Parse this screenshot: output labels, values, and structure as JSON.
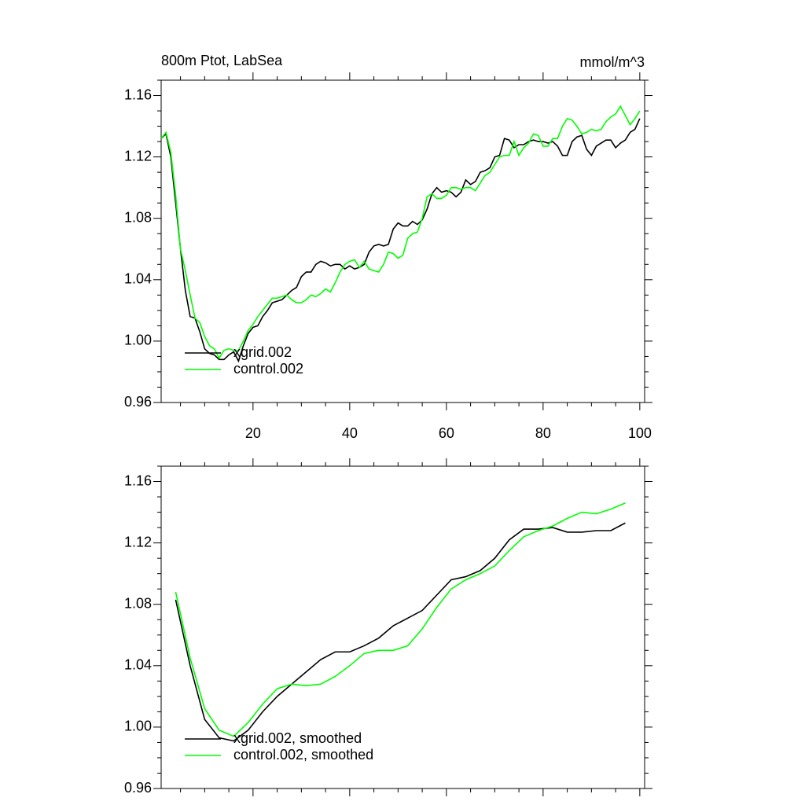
{
  "chart_data": [
    {
      "type": "line",
      "title": "800m Ptot, LabSea",
      "unit_label": "mmol/m^3",
      "x": [
        1,
        2,
        3,
        4,
        5,
        6,
        7,
        8,
        9,
        10,
        11,
        12,
        13,
        14,
        15,
        16,
        17,
        18,
        19,
        20,
        21,
        22,
        23,
        24,
        25,
        26,
        27,
        28,
        29,
        30,
        31,
        32,
        33,
        34,
        35,
        36,
        37,
        38,
        39,
        40,
        41,
        42,
        43,
        44,
        45,
        46,
        47,
        48,
        49,
        50,
        51,
        52,
        53,
        54,
        55,
        56,
        57,
        58,
        59,
        60,
        61,
        62,
        63,
        64,
        65,
        66,
        67,
        68,
        69,
        70,
        71,
        72,
        73,
        74,
        75,
        76,
        77,
        78,
        79,
        80,
        81,
        82,
        83,
        84,
        85,
        86,
        87,
        88,
        89,
        90,
        91,
        92,
        93,
        94,
        95,
        96,
        97,
        98,
        99,
        100
      ],
      "series": [
        {
          "name": "xgrid.002",
          "color": "#000000",
          "values": [
            1.132,
            1.135,
            1.12,
            1.09,
            1.06,
            1.033,
            1.016,
            1.015,
            1.006,
            0.995,
            0.992,
            0.991,
            0.988,
            0.988,
            0.991,
            0.993,
            0.987,
            0.997,
            1.005,
            1.009,
            1.01,
            1.016,
            1.02,
            1.025,
            1.026,
            1.027,
            1.03,
            1.033,
            1.035,
            1.042,
            1.045,
            1.045,
            1.05,
            1.052,
            1.051,
            1.049,
            1.05,
            1.05,
            1.047,
            1.049,
            1.047,
            1.048,
            1.05,
            1.058,
            1.062,
            1.063,
            1.062,
            1.063,
            1.073,
            1.077,
            1.075,
            1.075,
            1.078,
            1.076,
            1.079,
            1.086,
            1.096,
            1.1,
            1.097,
            1.098,
            1.097,
            1.094,
            1.097,
            1.105,
            1.102,
            1.104,
            1.11,
            1.111,
            1.113,
            1.12,
            1.121,
            1.132,
            1.131,
            1.126,
            1.128,
            1.128,
            1.13,
            1.131,
            1.13,
            1.13,
            1.129,
            1.13,
            1.127,
            1.121,
            1.121,
            1.13,
            1.133,
            1.134,
            1.125,
            1.121,
            1.127,
            1.129,
            1.131,
            1.131,
            1.126,
            1.129,
            1.131,
            1.136,
            1.138,
            1.145
          ]
        },
        {
          "name": "control.002",
          "color": "#00ff00",
          "values": [
            1.132,
            1.136,
            1.123,
            1.095,
            1.06,
            1.046,
            1.03,
            1.015,
            1.012,
            1.003,
            0.997,
            0.995,
            0.989,
            0.994,
            0.995,
            0.994,
            0.994,
            1.0,
            1.007,
            1.011,
            1.016,
            1.02,
            1.024,
            1.028,
            1.028,
            1.029,
            1.03,
            1.027,
            1.025,
            1.025,
            1.027,
            1.03,
            1.029,
            1.031,
            1.034,
            1.032,
            1.038,
            1.045,
            1.05,
            1.052,
            1.053,
            1.048,
            1.052,
            1.047,
            1.046,
            1.045,
            1.05,
            1.058,
            1.057,
            1.054,
            1.056,
            1.067,
            1.07,
            1.071,
            1.08,
            1.094,
            1.096,
            1.093,
            1.093,
            1.095,
            1.1,
            1.1,
            1.099,
            1.1,
            1.1,
            1.098,
            1.103,
            1.108,
            1.11,
            1.115,
            1.12,
            1.121,
            1.121,
            1.13,
            1.121,
            1.126,
            1.129,
            1.135,
            1.134,
            1.127,
            1.127,
            1.132,
            1.132,
            1.14,
            1.145,
            1.144,
            1.14,
            1.135,
            1.136,
            1.138,
            1.137,
            1.138,
            1.143,
            1.146,
            1.148,
            1.153,
            1.147,
            1.141,
            1.145,
            1.15
          ]
        }
      ],
      "xlim": [
        1,
        101
      ],
      "xticks": [
        20,
        40,
        60,
        80,
        100
      ],
      "ylim": [
        0.96,
        1.17
      ],
      "yticks": [
        0.96,
        {
          "value": 1,
          "label": "1.00"
        },
        1.04,
        1.08,
        1.12,
        1.16
      ],
      "legend": "lower left"
    },
    {
      "type": "line",
      "x": [
        4,
        7,
        10,
        13,
        16,
        19,
        22,
        25,
        28,
        31,
        34,
        37,
        40,
        43,
        46,
        49,
        52,
        55,
        58,
        61,
        64,
        67,
        70,
        73,
        76,
        79,
        82,
        85,
        88,
        91,
        94,
        97
      ],
      "series": [
        {
          "name": "xgrid.002, smoothed",
          "color": "#000000",
          "values": [
            1.083,
            1.04,
            1.005,
            0.993,
            0.991,
            0.998,
            1.01,
            1.02,
            1.028,
            1.036,
            1.044,
            1.049,
            1.049,
            1.053,
            1.058,
            1.066,
            1.071,
            1.076,
            1.086,
            1.096,
            1.098,
            1.102,
            1.11,
            1.122,
            1.129,
            1.129,
            1.13,
            1.127,
            1.127,
            1.128,
            1.128,
            1.133
          ]
        },
        {
          "name": "control.002, smoothed",
          "color": "#00ff00",
          "values": [
            1.088,
            1.045,
            1.012,
            0.998,
            0.994,
            1.003,
            1.015,
            1.025,
            1.028,
            1.027,
            1.028,
            1.033,
            1.04,
            1.048,
            1.05,
            1.05,
            1.053,
            1.064,
            1.078,
            1.09,
            1.096,
            1.1,
            1.105,
            1.115,
            1.124,
            1.128,
            1.131,
            1.136,
            1.14,
            1.139,
            1.142,
            1.146
          ]
        }
      ],
      "xlim": [
        1,
        101
      ],
      "ylim": [
        0.96,
        1.17
      ],
      "yticks": [
        0.96,
        {
          "value": 1,
          "label": "1.00"
        },
        1.04,
        1.08,
        1.12,
        1.16
      ],
      "legend": "lower left"
    }
  ]
}
